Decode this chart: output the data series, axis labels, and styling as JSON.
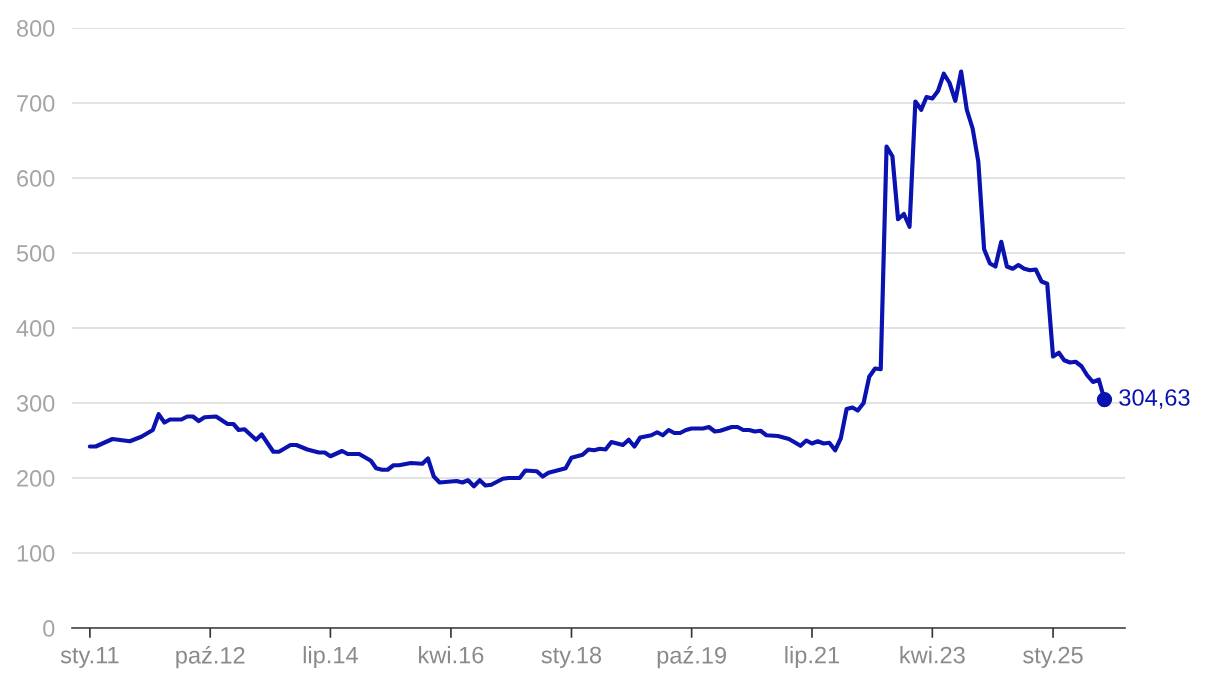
{
  "chart_data": {
    "type": "line",
    "x": [
      "2011-01",
      "2011-02",
      "2011-05",
      "2011-08",
      "2011-10",
      "2011-12",
      "2012-01",
      "2012-02",
      "2012-03",
      "2012-05",
      "2012-06",
      "2012-07",
      "2012-08",
      "2012-09",
      "2012-11",
      "2013-01",
      "2013-02",
      "2013-03",
      "2013-04",
      "2013-06",
      "2013-07",
      "2013-09",
      "2013-10",
      "2013-12",
      "2014-01",
      "2014-03",
      "2014-05",
      "2014-06",
      "2014-07",
      "2014-09",
      "2014-10",
      "2014-12",
      "2015-02",
      "2015-03",
      "2015-04",
      "2015-05",
      "2015-06",
      "2015-07",
      "2015-09",
      "2015-11",
      "2015-12",
      "2016-01",
      "2016-02",
      "2016-05",
      "2016-06",
      "2016-07",
      "2016-08",
      "2016-09",
      "2016-10",
      "2016-11",
      "2017-01",
      "2017-02",
      "2017-04",
      "2017-05",
      "2017-07",
      "2017-08",
      "2017-09",
      "2017-11",
      "2017-12",
      "2018-01",
      "2018-03",
      "2018-04",
      "2018-05",
      "2018-06",
      "2018-07",
      "2018-08",
      "2018-10",
      "2018-11",
      "2018-12",
      "2019-01",
      "2019-03",
      "2019-04",
      "2019-05",
      "2019-06",
      "2019-07",
      "2019-08",
      "2019-09",
      "2019-10",
      "2019-12",
      "2020-01",
      "2020-02",
      "2020-03",
      "2020-05",
      "2020-06",
      "2020-07",
      "2020-08",
      "2020-09",
      "2020-10",
      "2020-11",
      "2021-01",
      "2021-03",
      "2021-05",
      "2021-06",
      "2021-07",
      "2021-08",
      "2021-09",
      "2021-10",
      "2021-11",
      "2021-12",
      "2022-01",
      "2022-02",
      "2022-03",
      "2022-04",
      "2022-05",
      "2022-06",
      "2022-07",
      "2022-08",
      "2022-09",
      "2022-10",
      "2022-11",
      "2022-12",
      "2023-01",
      "2023-02",
      "2023-03",
      "2023-04",
      "2023-05",
      "2023-06",
      "2023-07",
      "2023-08",
      "2023-09",
      "2023-10",
      "2023-11",
      "2023-12",
      "2024-01",
      "2024-02",
      "2024-03",
      "2024-04",
      "2024-05",
      "2024-06",
      "2024-07",
      "2024-08",
      "2024-09",
      "2024-10",
      "2024-11",
      "2024-12",
      "2025-01",
      "2025-02",
      "2025-03",
      "2025-04",
      "2025-05",
      "2025-06",
      "2025-07",
      "2025-08",
      "2025-09",
      "2025-10"
    ],
    "series": [
      {
        "color": "#0a12b0",
        "values": [
          242,
          242,
          252,
          249,
          255,
          264,
          285,
          274,
          278,
          278,
          282,
          282,
          276,
          281,
          282,
          272,
          272,
          264,
          265,
          251,
          258,
          235,
          235,
          244,
          244,
          238,
          234,
          234,
          229,
          236,
          232,
          232,
          223,
          213,
          211,
          211,
          217,
          217,
          220,
          219,
          226,
          202,
          194,
          196,
          194,
          197,
          189,
          197,
          190,
          191,
          199,
          200,
          200,
          210,
          209,
          202,
          207,
          211,
          213,
          227,
          231,
          238,
          237,
          239,
          238,
          248,
          244,
          251,
          242,
          254,
          257,
          261,
          257,
          264,
          260,
          260,
          264,
          266,
          266,
          268,
          262,
          263,
          268,
          268,
          264,
          264,
          262,
          263,
          257,
          256,
          252,
          243,
          250,
          246,
          249,
          246,
          247,
          237,
          253,
          292,
          294,
          290,
          300,
          335,
          346,
          345,
          642,
          629,
          545,
          552,
          535,
          702,
          691,
          708,
          706,
          716,
          739,
          727,
          703,
          742,
          691,
          666,
          622,
          505,
          486,
          482,
          515,
          482,
          479,
          484,
          479,
          477,
          478,
          462,
          459,
          362,
          367,
          357,
          354,
          355,
          349,
          337,
          328,
          331,
          304.63
        ]
      }
    ],
    "xlim": [
      "2010-09-28",
      "2026-01-18"
    ],
    "xticks": [
      {
        "value": "2011-01",
        "label": "sty.11"
      },
      {
        "value": "2012-10",
        "label": "paź.12"
      },
      {
        "value": "2014-07",
        "label": "lip.14"
      },
      {
        "value": "2016-04",
        "label": "kwi.16"
      },
      {
        "value": "2018-01",
        "label": "sty.18"
      },
      {
        "value": "2019-10",
        "label": "paź.19"
      },
      {
        "value": "2021-07",
        "label": "lip.21"
      },
      {
        "value": "2023-04",
        "label": "kwi.23"
      },
      {
        "value": "2025-01",
        "label": "sty.25"
      }
    ],
    "ylim": [
      0,
      800
    ],
    "yticks": [
      0,
      100,
      200,
      300,
      400,
      500,
      600,
      700,
      800
    ],
    "grid": "y",
    "annotations": [
      {
        "text": "304,63",
        "x": "2025-10",
        "y": 304.63
      }
    ]
  }
}
